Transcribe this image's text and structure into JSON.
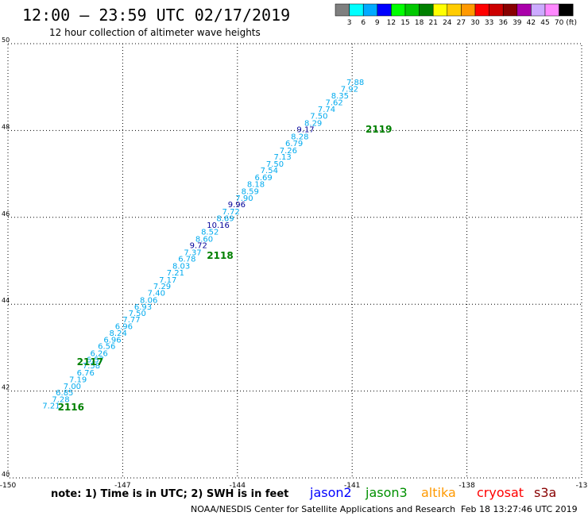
{
  "title": "12:00 – 23:59 UTC 02/17/2019",
  "subtitle": "12 hour collection of altimeter wave heights",
  "legend": {
    "units": "(ft)",
    "items": [
      {
        "label": "3",
        "color": "#7f7f7f"
      },
      {
        "label": "6",
        "color": "#00ffff"
      },
      {
        "label": "9",
        "color": "#00aaff"
      },
      {
        "label": "12",
        "color": "#0000ff"
      },
      {
        "label": "15",
        "color": "#00ff00"
      },
      {
        "label": "18",
        "color": "#00c800"
      },
      {
        "label": "21",
        "color": "#008000"
      },
      {
        "label": "24",
        "color": "#ffff00"
      },
      {
        "label": "27",
        "color": "#ffcc00"
      },
      {
        "label": "30",
        "color": "#ff9900"
      },
      {
        "label": "33",
        "color": "#ff0000"
      },
      {
        "label": "36",
        "color": "#cc0000"
      },
      {
        "label": "39",
        "color": "#880000"
      },
      {
        "label": "42",
        "color": "#aa00aa"
      },
      {
        "label": "45",
        "color": "#ccaaff"
      },
      {
        "label": "70",
        "color": "#ff88ff"
      },
      {
        "label": "",
        "color": "#000000"
      }
    ]
  },
  "footer": {
    "note": "note: 1) Time is in UTC; 2) SWH is in feet",
    "satellites": [
      {
        "name": "jason2",
        "color": "#0000ff"
      },
      {
        "name": "jason3",
        "color": "#009000"
      },
      {
        "name": "altika",
        "color": "#ff9900"
      },
      {
        "name": "cryosat",
        "color": "#ff0000"
      },
      {
        "name": "s3a",
        "color": "#880000"
      }
    ],
    "credit": "NOAA/NESDIS Center for Satellite Applications and Research",
    "timestamp": "Feb 18 13:27:46 UTC 2019"
  },
  "chart_data": {
    "type": "scatter",
    "xlim": [
      -150,
      -135
    ],
    "ylim": [
      40,
      50
    ],
    "x_ticks": [
      "-150",
      "-147",
      "-144",
      "-141",
      "-138",
      "-13"
    ],
    "y_ticks": [
      "40",
      "42",
      "44",
      "46",
      "48",
      "50"
    ],
    "grid": true,
    "low_color": "#00aaee",
    "high_color": "#000099",
    "time_color": "#008000",
    "values": [
      [
        -149.1,
        41.6,
        "7.21"
      ],
      [
        -148.85,
        41.75,
        "7.28"
      ],
      [
        -148.75,
        41.9,
        "6.85"
      ],
      [
        -148.55,
        42.05,
        "7.00"
      ],
      [
        -148.4,
        42.2,
        "7.19"
      ],
      [
        -148.2,
        42.36,
        "6.76"
      ],
      [
        -148.05,
        42.52,
        "7.58"
      ],
      [
        -147.95,
        42.66,
        "6.57"
      ],
      [
        -147.85,
        42.81,
        "6.26"
      ],
      [
        -147.65,
        42.97,
        "6.56"
      ],
      [
        -147.5,
        43.12,
        "6.96"
      ],
      [
        -147.35,
        43.27,
        "8.24"
      ],
      [
        -147.2,
        43.43,
        "6.96"
      ],
      [
        -147.0,
        43.58,
        "7.77"
      ],
      [
        -146.85,
        43.73,
        "7.50"
      ],
      [
        -146.7,
        43.88,
        "6.93"
      ],
      [
        -146.55,
        44.03,
        "8.06"
      ],
      [
        -146.35,
        44.2,
        "7.40"
      ],
      [
        -146.2,
        44.35,
        "7.29"
      ],
      [
        -146.05,
        44.5,
        "7.17"
      ],
      [
        -145.85,
        44.66,
        "7.21"
      ],
      [
        -145.7,
        44.82,
        "8.03"
      ],
      [
        -145.55,
        44.98,
        "6.78"
      ],
      [
        -145.4,
        45.13,
        "7.37"
      ],
      [
        -145.25,
        45.29,
        "9.72"
      ],
      [
        -145.1,
        45.44,
        "8.60"
      ],
      [
        -144.95,
        45.6,
        "8.52"
      ],
      [
        -144.8,
        45.76,
        "10.16"
      ],
      [
        -144.55,
        45.91,
        "8.69"
      ],
      [
        -144.4,
        46.07,
        "7.72"
      ],
      [
        -144.25,
        46.23,
        "9.96"
      ],
      [
        -144.05,
        46.38,
        "7.90"
      ],
      [
        -143.9,
        46.54,
        "8.59"
      ],
      [
        -143.75,
        46.7,
        "8.18"
      ],
      [
        -143.55,
        46.86,
        "6.69"
      ],
      [
        -143.4,
        47.02,
        "7.54"
      ],
      [
        -143.25,
        47.17,
        "7.50"
      ],
      [
        -143.05,
        47.33,
        "7.13"
      ],
      [
        -142.9,
        47.48,
        "7.26"
      ],
      [
        -142.75,
        47.64,
        "6.79"
      ],
      [
        -142.6,
        47.8,
        "8.28"
      ],
      [
        -142.45,
        47.96,
        "9.17"
      ],
      [
        -142.25,
        48.11,
        "8.29"
      ],
      [
        -142.1,
        48.27,
        "7.50"
      ],
      [
        -141.9,
        48.43,
        "7.74"
      ],
      [
        -141.7,
        48.58,
        "7.62"
      ],
      [
        -141.55,
        48.74,
        "8.35"
      ],
      [
        -141.3,
        48.89,
        "7.92"
      ],
      [
        -141.15,
        49.05,
        "7.88"
      ]
    ],
    "time_labels": [
      [
        -148.7,
        41.55,
        "2116"
      ],
      [
        -148.2,
        42.6,
        "2117"
      ],
      [
        -144.8,
        45.05,
        "2118"
      ],
      [
        -140.65,
        47.95,
        "2119"
      ]
    ]
  }
}
